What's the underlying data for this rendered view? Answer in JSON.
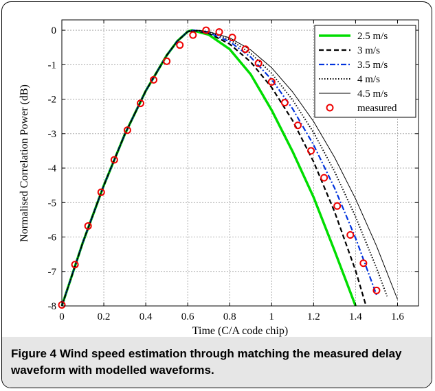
{
  "caption": {
    "label": "Figure 4",
    "text": " Wind speed estimation through matching the measured delay waveform with modelled waveforms."
  },
  "chart_data": {
    "type": "line",
    "xlabel": "Time (C/A code chip)",
    "ylabel": "Normalised Correlation Power (dB)",
    "xlim": [
      0,
      1.7
    ],
    "ylim": [
      -8,
      0.3
    ],
    "xticks": [
      0,
      0.2,
      0.4,
      0.6,
      0.8,
      1,
      1.2,
      1.4,
      1.6
    ],
    "xtick_labels": [
      "0",
      "0.2",
      "0.4",
      "0.6",
      "0.8",
      "1",
      "1.2",
      "1.4",
      "1.6"
    ],
    "yticks": [
      0,
      -1,
      -2,
      -3,
      -4,
      -5,
      -6,
      -7,
      -8
    ],
    "ytick_labels": [
      "0",
      "-1",
      "-2",
      "-3",
      "-4",
      "-5",
      "-6",
      "-7",
      "-8"
    ],
    "grid": true,
    "legend_position": "top-right",
    "series": [
      {
        "name": "2.5 m/s",
        "color": "#00dd00",
        "style": "solid-thick",
        "x": [
          0,
          0.1,
          0.2,
          0.3,
          0.4,
          0.5,
          0.55,
          0.6,
          0.62,
          0.7,
          0.8,
          0.9,
          1.0,
          1.1,
          1.2,
          1.3,
          1.4
        ],
        "y": [
          -8,
          -6.16,
          -4.5,
          -3.02,
          -1.76,
          -0.73,
          -0.32,
          -0.04,
          0,
          -0.13,
          -0.55,
          -1.28,
          -2.32,
          -3.52,
          -4.85,
          -6.4,
          -8.0
        ]
      },
      {
        "name": "3 m/s",
        "color": "#000000",
        "style": "dashed",
        "x": [
          0,
          0.1,
          0.2,
          0.3,
          0.4,
          0.5,
          0.55,
          0.6,
          0.62,
          0.7,
          0.8,
          0.9,
          1.0,
          1.1,
          1.2,
          1.3,
          1.4,
          1.45
        ],
        "y": [
          -8,
          -6.16,
          -4.5,
          -3.02,
          -1.76,
          -0.73,
          -0.32,
          -0.04,
          0,
          -0.09,
          -0.4,
          -0.92,
          -1.66,
          -2.62,
          -3.82,
          -5.27,
          -6.97,
          -8.0
        ]
      },
      {
        "name": "3.5 m/s",
        "color": "#0033dd",
        "style": "dashdot",
        "x": [
          0,
          0.1,
          0.2,
          0.3,
          0.4,
          0.5,
          0.55,
          0.6,
          0.63,
          0.7,
          0.8,
          0.9,
          1.0,
          1.1,
          1.2,
          1.3,
          1.4,
          1.5
        ],
        "y": [
          -8,
          -6.16,
          -4.5,
          -3.02,
          -1.76,
          -0.73,
          -0.32,
          -0.04,
          0,
          -0.07,
          -0.33,
          -0.78,
          -1.43,
          -2.28,
          -3.33,
          -4.58,
          -6.03,
          -7.68
        ]
      },
      {
        "name": "4 m/s",
        "color": "#000000",
        "style": "dotted",
        "x": [
          0,
          0.1,
          0.2,
          0.3,
          0.4,
          0.5,
          0.55,
          0.6,
          0.64,
          0.7,
          0.8,
          0.9,
          1.0,
          1.1,
          1.2,
          1.3,
          1.4,
          1.5,
          1.55
        ],
        "y": [
          -8,
          -6.16,
          -4.5,
          -3.02,
          -1.76,
          -0.73,
          -0.32,
          -0.04,
          0,
          -0.05,
          -0.27,
          -0.67,
          -1.25,
          -2.02,
          -2.97,
          -4.1,
          -5.41,
          -6.9,
          -7.72
        ]
      },
      {
        "name": "4.5 m/s",
        "color": "#000000",
        "style": "solid-thin",
        "x": [
          0,
          0.1,
          0.2,
          0.3,
          0.4,
          0.5,
          0.55,
          0.6,
          0.65,
          0.7,
          0.8,
          0.9,
          1.0,
          1.1,
          1.2,
          1.3,
          1.4,
          1.5,
          1.6
        ],
        "y": [
          -8,
          -6.16,
          -4.5,
          -3.02,
          -1.76,
          -0.73,
          -0.32,
          -0.04,
          0,
          -0.04,
          -0.22,
          -0.57,
          -1.09,
          -1.79,
          -2.65,
          -3.69,
          -4.89,
          -6.26,
          -7.81
        ]
      },
      {
        "name": "measured",
        "color": "#ee0000",
        "style": "circle-markers",
        "x": [
          0,
          0.0625,
          0.125,
          0.1875,
          0.25,
          0.3125,
          0.375,
          0.4375,
          0.5,
          0.5625,
          0.625,
          0.6875,
          0.75,
          0.8125,
          0.875,
          0.9375,
          1.0,
          1.0625,
          1.125,
          1.1875,
          1.25,
          1.3125,
          1.375,
          1.4375,
          1.5
        ],
        "y": [
          -7.97,
          -6.8,
          -5.68,
          -4.7,
          -3.76,
          -2.9,
          -2.12,
          -1.44,
          -0.9,
          -0.43,
          -0.14,
          0,
          -0.05,
          -0.21,
          -0.55,
          -0.96,
          -1.5,
          -2.1,
          -2.76,
          -3.5,
          -4.28,
          -5.1,
          -5.94,
          -6.76,
          -7.55
        ]
      }
    ]
  }
}
